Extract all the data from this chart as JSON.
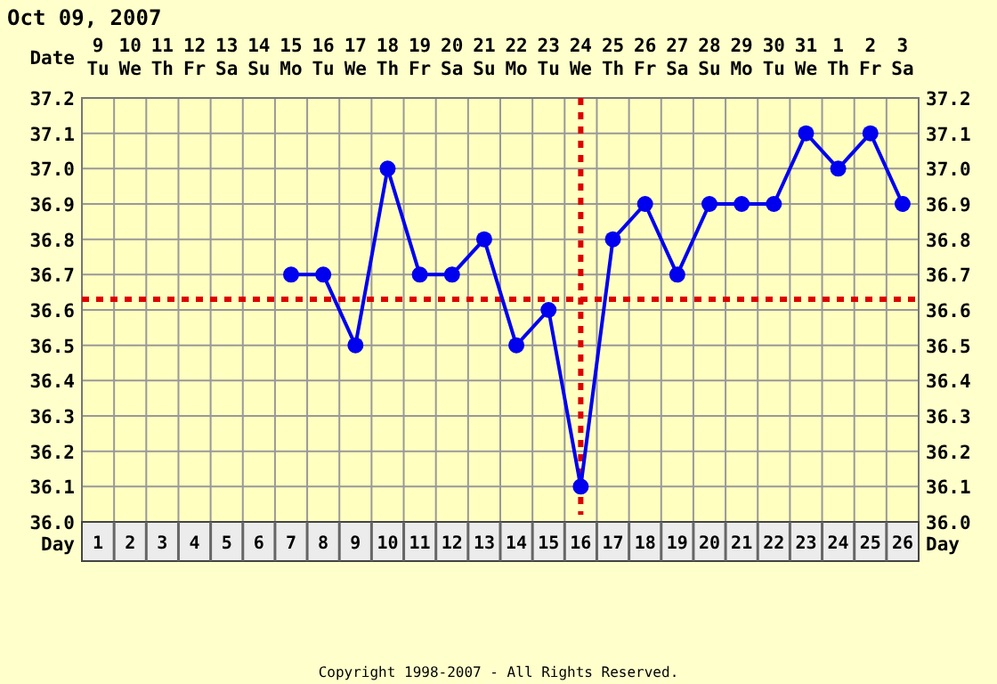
{
  "chart_data": {
    "type": "line",
    "title": "Oct 09, 2007",
    "xlabel": "Day",
    "x2label": "Date",
    "xlim": [
      0.5,
      26.5
    ],
    "xticks": [
      1,
      2,
      3,
      4,
      5,
      6,
      7,
      8,
      9,
      10,
      11,
      12,
      13,
      14,
      15,
      16,
      17,
      18,
      19,
      20,
      21,
      22,
      23,
      24,
      25,
      26
    ],
    "x": [
      7,
      8,
      9,
      10,
      11,
      12,
      13,
      14,
      15,
      16,
      17,
      18,
      19,
      20,
      21,
      22,
      23,
      24,
      25,
      26
    ],
    "series": [
      {
        "color": "#0000ee",
        "values": [
          36.7,
          36.7,
          36.5,
          37.0,
          36.7,
          36.7,
          36.8,
          36.5,
          36.6,
          36.1,
          36.8,
          36.9,
          36.7,
          36.9,
          36.9,
          36.9,
          37.1,
          37.0,
          37.1,
          36.9
        ]
      }
    ],
    "x2lim": [
      "2007-10-08T12:00",
      "2007-11-03T12:00"
    ],
    "x2ticks": [
      {
        "value": "2007-10-09",
        "label": "9 Tu"
      },
      {
        "value": "2007-10-10",
        "label": "10 We"
      },
      {
        "value": "2007-10-11",
        "label": "11 Th"
      },
      {
        "value": "2007-10-12",
        "label": "12 Fr"
      },
      {
        "value": "2007-10-13",
        "label": "13 Sa"
      },
      {
        "value": "2007-10-14",
        "label": "14 Su"
      },
      {
        "value": "2007-10-15",
        "label": "15 Mo"
      },
      {
        "value": "2007-10-16",
        "label": "16 Tu"
      },
      {
        "value": "2007-10-17",
        "label": "17 We"
      },
      {
        "value": "2007-10-18",
        "label": "18 Th"
      },
      {
        "value": "2007-10-19",
        "label": "19 Fr"
      },
      {
        "value": "2007-10-20",
        "label": "20 Sa"
      },
      {
        "value": "2007-10-21",
        "label": "21 Su"
      },
      {
        "value": "2007-10-22",
        "label": "22 Mo"
      },
      {
        "value": "2007-10-23",
        "label": "23 Tu"
      },
      {
        "value": "2007-10-24",
        "label": "24 We"
      },
      {
        "value": "2007-10-25",
        "label": "25 Th"
      },
      {
        "value": "2007-10-26",
        "label": "26 Fr"
      },
      {
        "value": "2007-10-27",
        "label": "27 Sa"
      },
      {
        "value": "2007-10-28",
        "label": "28 Su"
      },
      {
        "value": "2007-10-29",
        "label": "29 Mo"
      },
      {
        "value": "2007-10-30",
        "label": "30 Tu"
      },
      {
        "value": "2007-10-31",
        "label": "31 We"
      },
      {
        "value": "2007-11-01",
        "label": "1 Th"
      },
      {
        "value": "2007-11-02",
        "label": "2 Fr"
      },
      {
        "value": "2007-11-03",
        "label": "3 Sa"
      }
    ],
    "ylim": [
      36.0,
      37.2
    ],
    "yticks": [
      {
        "value": 36,
        "label": "36.0"
      },
      36.1,
      36.2,
      36.3,
      36.4,
      36.5,
      36.6,
      36.7,
      36.8,
      36.9,
      {
        "value": 37,
        "label": "37.0"
      },
      37.1,
      37.2
    ],
    "y2lim": [
      36.0,
      37.2
    ],
    "y2ticks": [
      {
        "value": 36,
        "label": "36.0"
      },
      36.1,
      36.2,
      36.3,
      36.4,
      36.5,
      36.6,
      36.7,
      36.8,
      36.9,
      {
        "value": 37,
        "label": "37.0"
      },
      37.1,
      37.2
    ],
    "ref_lines": [
      {
        "axis": "y",
        "value": 36.63,
        "color": "#dd0000",
        "line_style": "dotted"
      },
      {
        "axis": "x",
        "value": 16,
        "color": "#dd0000",
        "line_style": "dotted"
      }
    ],
    "annotations": [
      "Copyright 1998-2007 - All Rights Reserved."
    ],
    "grid": true,
    "marker": "circle",
    "line_style": "solid"
  }
}
